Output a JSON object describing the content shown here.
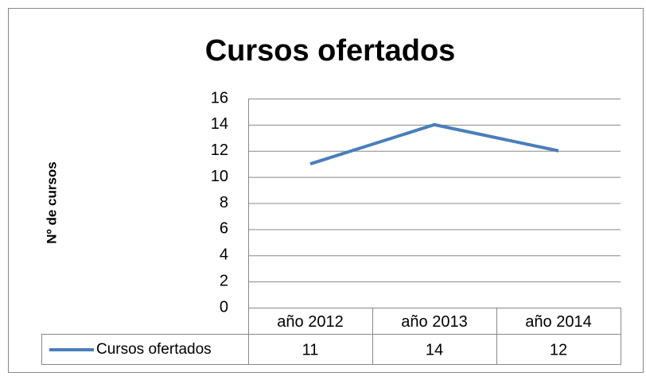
{
  "chart_data": {
    "type": "line",
    "title": "Cursos ofertados",
    "y_label": "Nº de cursos",
    "categories": [
      "año 2012",
      "año 2013",
      "año 2014"
    ],
    "series": [
      {
        "name": "Cursos ofertados",
        "color": "#4a7ebb",
        "values": [
          11,
          14,
          12
        ]
      }
    ],
    "ylim": [
      0,
      16
    ],
    "yticks": [
      0,
      2,
      4,
      6,
      8,
      10,
      12,
      14,
      16
    ],
    "grid": true,
    "data_table": true
  }
}
